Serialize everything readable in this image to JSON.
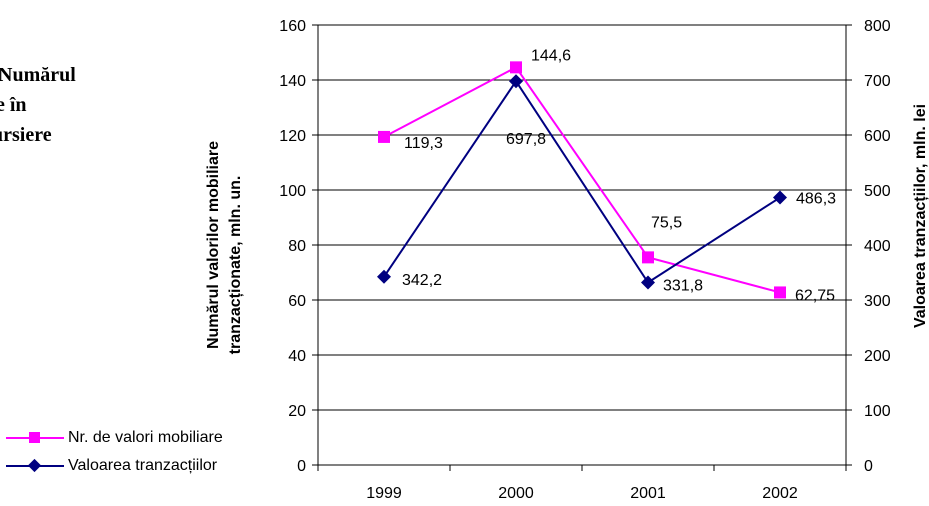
{
  "side_text": [
    "Numărul",
    "e în",
    "ursiere"
  ],
  "chart_data": {
    "type": "line",
    "categories": [
      "1999",
      "2000",
      "2001",
      "2002"
    ],
    "y_left": {
      "label_lines": [
        "Numărul valorilor mobiliare",
        "tranzacționate, mln. un."
      ],
      "lim": [
        0,
        160
      ],
      "ticks": [
        "0",
        "20",
        "40",
        "60",
        "80",
        "100",
        "120",
        "140",
        "160"
      ]
    },
    "y_right": {
      "label": "Valoarea tranzacțiilor, mln. lei",
      "lim": [
        0,
        800
      ],
      "ticks": [
        "0",
        "100",
        "200",
        "300",
        "400",
        "500",
        "600",
        "700",
        "800"
      ]
    },
    "series": [
      {
        "name": "Nr. de valori mobiliare",
        "axis": "left",
        "color": "#ff00ff",
        "marker": "square",
        "values": [
          119.3,
          144.6,
          75.5,
          62.75
        ],
        "labels": [
          "119,3",
          "144,6",
          "75,5",
          "62,75"
        ]
      },
      {
        "name": "Valoarea tranzacțiilor",
        "axis": "right",
        "color": "#000080",
        "marker": "diamond",
        "values": [
          342.2,
          697.8,
          331.8,
          486.3
        ],
        "labels": [
          "342,2",
          "697,8",
          "331,8",
          "486,3"
        ]
      }
    ],
    "grid": true,
    "legend": "bottom-left"
  }
}
